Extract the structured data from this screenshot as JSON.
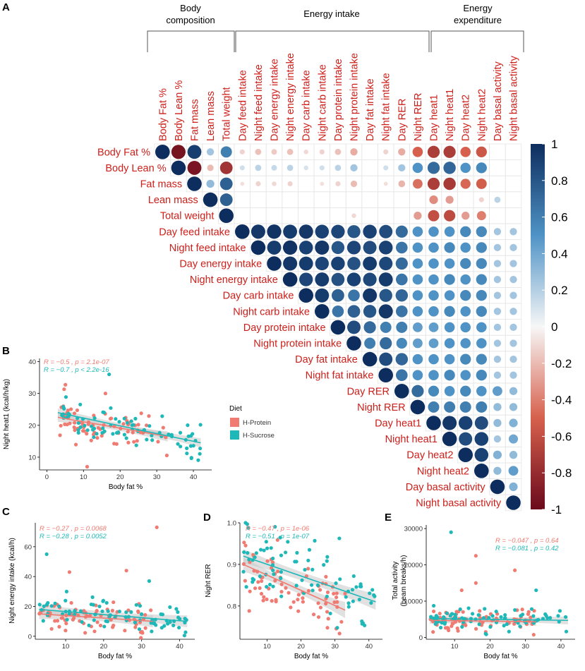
{
  "chart_data": [
    {
      "panel": "A",
      "type": "heatmap",
      "title": "",
      "groups": [
        "Body composition",
        "Energy intake",
        "Energy expenditure"
      ],
      "rows": [
        "Body Fat %",
        "Body Lean %",
        "Fat mass",
        "Lean mass",
        "Total weight",
        "Day feed intake",
        "Night feed intake",
        "Day energy intake",
        "Night energy intake",
        "Day carb intake",
        "Night carb intake",
        "Day protein intake",
        "Night protein intake",
        "Day fat intake",
        "Night fat intake",
        "Day RER",
        "Night RER",
        "Day heat1",
        "Night heat1",
        "Day heat2",
        "Night heat2",
        "Day basal activity",
        "Night basal activity"
      ],
      "columns": [
        "Body Fat %",
        "Body Lean %",
        "Fat mass",
        "Lean mass",
        "Total weight",
        "Day feed intake",
        "Night feed intake",
        "Day energy intake",
        "Night energy intake",
        "Day carb intake",
        "Night carb intake",
        "Day protein intake",
        "Night protein intake",
        "Day fat intake",
        "Night fat intake",
        "Day RER",
        "Night RER",
        "Day heat1",
        "Night heat1",
        "Day heat2",
        "Night heat2",
        "Day basal activity",
        "Night basal activity"
      ],
      "matrix": [
        [
          1,
          -0.95,
          0.92,
          0.25,
          0.6,
          -0.12,
          -0.18,
          -0.15,
          -0.18,
          -0.1,
          -0.12,
          -0.18,
          -0.25,
          null,
          -0.12,
          -0.25,
          -0.5,
          -0.7,
          -0.7,
          -0.5,
          -0.55,
          null,
          null
        ],
        [
          null,
          1,
          -0.93,
          -0.2,
          -0.75,
          0.12,
          0.18,
          0.15,
          0.18,
          0.1,
          0.12,
          0.18,
          0.25,
          null,
          0.12,
          0.25,
          0.5,
          0.7,
          0.72,
          0.5,
          0.55,
          null,
          null
        ],
        [
          null,
          null,
          1,
          0.3,
          0.75,
          -0.08,
          -0.12,
          -0.1,
          -0.12,
          null,
          -0.08,
          -0.12,
          -0.2,
          null,
          -0.08,
          -0.22,
          -0.45,
          -0.7,
          -0.72,
          -0.48,
          -0.52,
          null,
          null
        ],
        [
          null,
          null,
          null,
          1,
          0.75,
          null,
          null,
          null,
          null,
          null,
          null,
          null,
          null,
          null,
          null,
          null,
          null,
          -0.35,
          -0.3,
          null,
          -0.12,
          0.18,
          null
        ],
        [
          null,
          null,
          null,
          null,
          1,
          null,
          null,
          null,
          null,
          null,
          null,
          null,
          -0.1,
          null,
          null,
          null,
          -0.3,
          -0.6,
          -0.62,
          -0.3,
          -0.4,
          null,
          null
        ],
        [
          null,
          null,
          null,
          null,
          null,
          1,
          0.95,
          0.97,
          0.93,
          0.95,
          0.9,
          0.88,
          0.8,
          0.9,
          0.85,
          0.7,
          0.5,
          0.5,
          0.5,
          0.55,
          0.55,
          0.25,
          0.25
        ],
        [
          null,
          null,
          null,
          null,
          null,
          null,
          1,
          0.93,
          0.97,
          0.9,
          0.95,
          0.8,
          0.88,
          0.85,
          0.9,
          0.65,
          0.5,
          0.5,
          0.55,
          0.5,
          0.55,
          0.25,
          0.25
        ],
        [
          null,
          null,
          null,
          null,
          null,
          null,
          null,
          1,
          0.95,
          0.93,
          0.88,
          0.9,
          0.82,
          0.93,
          0.87,
          0.7,
          0.5,
          0.5,
          0.5,
          0.55,
          0.55,
          0.25,
          0.25
        ],
        [
          null,
          null,
          null,
          null,
          null,
          null,
          null,
          null,
          1,
          0.88,
          0.93,
          0.82,
          0.9,
          0.87,
          0.93,
          0.65,
          0.5,
          0.5,
          0.55,
          0.5,
          0.55,
          0.25,
          0.25
        ],
        [
          null,
          null,
          null,
          null,
          null,
          null,
          null,
          null,
          null,
          1,
          0.93,
          0.75,
          0.65,
          0.95,
          0.8,
          0.72,
          0.5,
          0.5,
          0.5,
          0.55,
          0.55,
          0.25,
          0.25
        ],
        [
          null,
          null,
          null,
          null,
          null,
          null,
          null,
          null,
          null,
          null,
          1,
          0.65,
          0.75,
          0.8,
          0.95,
          0.65,
          0.5,
          0.5,
          0.55,
          0.5,
          0.55,
          0.25,
          0.25
        ],
        [
          null,
          null,
          null,
          null,
          null,
          null,
          null,
          null,
          null,
          null,
          null,
          1,
          0.85,
          0.7,
          0.6,
          0.6,
          0.45,
          0.45,
          0.5,
          0.5,
          0.5,
          0.25,
          0.25
        ],
        [
          null,
          null,
          null,
          null,
          null,
          null,
          null,
          null,
          null,
          null,
          null,
          null,
          1,
          0.6,
          0.7,
          0.55,
          0.45,
          0.45,
          0.5,
          0.5,
          0.5,
          0.25,
          0.25
        ],
        [
          null,
          null,
          null,
          null,
          null,
          null,
          null,
          null,
          null,
          null,
          null,
          null,
          null,
          1,
          0.85,
          0.72,
          0.5,
          0.5,
          0.5,
          0.55,
          0.55,
          0.25,
          0.25
        ],
        [
          null,
          null,
          null,
          null,
          null,
          null,
          null,
          null,
          null,
          null,
          null,
          null,
          null,
          null,
          1,
          0.65,
          0.5,
          0.5,
          0.55,
          0.5,
          0.55,
          0.25,
          0.25
        ],
        [
          null,
          null,
          null,
          null,
          null,
          null,
          null,
          null,
          null,
          null,
          null,
          null,
          null,
          null,
          null,
          1,
          0.7,
          0.55,
          0.5,
          0.55,
          0.5,
          0.45,
          0.3
        ],
        [
          null,
          null,
          null,
          null,
          null,
          null,
          null,
          null,
          null,
          null,
          null,
          null,
          null,
          null,
          null,
          null,
          1,
          0.6,
          0.6,
          0.6,
          0.6,
          0.3,
          0.3
        ],
        [
          null,
          null,
          null,
          null,
          null,
          null,
          null,
          null,
          null,
          null,
          null,
          null,
          null,
          null,
          null,
          null,
          null,
          1,
          0.95,
          0.9,
          0.85,
          0.3,
          0.35
        ],
        [
          null,
          null,
          null,
          null,
          null,
          null,
          null,
          null,
          null,
          null,
          null,
          null,
          null,
          null,
          null,
          null,
          null,
          null,
          1,
          0.85,
          0.9,
          0.25,
          0.4
        ],
        [
          null,
          null,
          null,
          null,
          null,
          null,
          null,
          null,
          null,
          null,
          null,
          null,
          null,
          null,
          null,
          null,
          null,
          null,
          null,
          1,
          0.9,
          0.35,
          0.3
        ],
        [
          null,
          null,
          null,
          null,
          null,
          null,
          null,
          null,
          null,
          null,
          null,
          null,
          null,
          null,
          null,
          null,
          null,
          null,
          null,
          null,
          1,
          0.3,
          0.45
        ],
        [
          null,
          null,
          null,
          null,
          null,
          null,
          null,
          null,
          null,
          null,
          null,
          null,
          null,
          null,
          null,
          null,
          null,
          null,
          null,
          null,
          null,
          1,
          0.35
        ],
        [
          null,
          null,
          null,
          null,
          null,
          null,
          null,
          null,
          null,
          null,
          null,
          null,
          null,
          null,
          null,
          null,
          null,
          null,
          null,
          null,
          null,
          null,
          1
        ]
      ],
      "colorbar": {
        "range": [
          -1,
          1
        ],
        "ticks": [
          "1",
          "0.8",
          "0.6",
          "0.4",
          "0.2",
          "0",
          "-0.2",
          "-0.4",
          "-0.6",
          "-0.8",
          "-1"
        ],
        "tick_values": [
          1,
          0.8,
          0.6,
          0.4,
          0.2,
          0,
          -0.2,
          -0.4,
          -0.6,
          -0.8,
          -1
        ]
      },
      "colors": {
        "neg": "#6b0a1c",
        "neg_mid": "#d6604d",
        "zero": "#f7f7f7",
        "pos_mid": "#4f93c6",
        "pos": "#0d2d5e"
      }
    },
    {
      "panel": "B",
      "type": "scatter",
      "xlabel": "Body fat %",
      "ylabel": "Night heat1 (kcal/h/kg)",
      "xlim": [
        -2,
        45
      ],
      "ylim": [
        6,
        41
      ],
      "xticks": [
        0,
        10,
        20,
        30,
        40
      ],
      "yticks": [
        10,
        20,
        30,
        40
      ],
      "legend": {
        "title": "Diet",
        "items": [
          "H-Protein",
          "H-Sucrose"
        ]
      },
      "stats": [
        {
          "R": "R = −0.5 ,",
          "p": "p = 2.1e-07"
        },
        {
          "R": "R = −0.7 ,",
          "p": "p < 2.2e-16"
        }
      ],
      "fits": [
        {
          "x": [
            3,
            33
          ],
          "y": [
            22.5,
            16.5
          ]
        },
        {
          "x": [
            3,
            42
          ],
          "y": [
            24,
            14.5
          ]
        }
      ],
      "bands": [
        1.0,
        0.9
      ],
      "point_spec": {
        "n": 75,
        "x_range": [
          3,
          33
        ],
        "slope": -0.2,
        "intercept": 23.1,
        "sd": 3.0,
        "seed": 11,
        "outliers": [
          [
            11,
            7
          ],
          [
            16,
            30
          ]
        ]
      },
      "point_spec2": {
        "n": 80,
        "x_range": [
          3,
          42
        ],
        "slope": -0.25,
        "intercept": 25,
        "sd": 2.5,
        "seed": 23,
        "outliers": [
          [
            17,
            36
          ]
        ]
      }
    },
    {
      "panel": "C",
      "type": "scatter",
      "xlabel": "Body fat %",
      "ylabel": "Night energy intake (kcal/h)",
      "xlim": [
        2,
        44
      ],
      "ylim": [
        -2,
        76
      ],
      "xticks": [
        10,
        20,
        30,
        40
      ],
      "yticks": [
        0,
        20,
        40,
        60
      ],
      "stats": [
        {
          "R": "R = −0.27 ,",
          "p": "p = 0.0068"
        },
        {
          "R": "R = −0.28 ,",
          "p": "p = 0.0052"
        }
      ],
      "fits": [
        {
          "x": [
            3,
            33
          ],
          "y": [
            15,
            10
          ]
        },
        {
          "x": [
            3,
            42
          ],
          "y": [
            18,
            10
          ]
        }
      ],
      "bands": [
        2.5,
        2.5
      ],
      "point_spec": {
        "n": 75,
        "x_range": [
          3,
          33
        ],
        "slope": -0.17,
        "intercept": 15.5,
        "sd": 5,
        "seed": 5,
        "outliers": [
          [
            34,
            73
          ],
          [
            26,
            44
          ],
          [
            11,
            43
          ]
        ]
      },
      "point_spec2": {
        "n": 80,
        "x_range": [
          3,
          42
        ],
        "slope": -0.2,
        "intercept": 18.6,
        "sd": 5,
        "seed": 7,
        "outliers": [
          [
            5,
            55
          ],
          [
            32,
            37
          ]
        ]
      }
    },
    {
      "panel": "D",
      "type": "scatter",
      "xlabel": "Body fat %",
      "ylabel": "Night RER",
      "xlim": [
        2,
        44
      ],
      "ylim": [
        0.72,
        1.0
      ],
      "xticks": [
        10,
        20,
        30,
        40
      ],
      "yticks": [
        0.8,
        0.9,
        1.0
      ],
      "ytick_labels": [
        "0.8",
        "0.9",
        "1.0"
      ],
      "stats": [
        {
          "R": "R = −0.47 ,",
          "p": "p = 1e-06"
        },
        {
          "R": "R = −0.51 ,",
          "p": "p = 1e-07"
        }
      ],
      "fits": [
        {
          "x": [
            3,
            33
          ],
          "y": [
            0.9,
            0.79
          ]
        },
        {
          "x": [
            3,
            42
          ],
          "y": [
            0.92,
            0.81
          ]
        }
      ],
      "bands": [
        0.012,
        0.012
      ],
      "point_spec": {
        "n": 75,
        "x_range": [
          3,
          33
        ],
        "slope": -0.0037,
        "intercept": 0.911,
        "sd": 0.045,
        "seed": 3,
        "outliers": []
      },
      "point_spec2": {
        "n": 80,
        "x_range": [
          3,
          42
        ],
        "slope": -0.0028,
        "intercept": 0.928,
        "sd": 0.045,
        "seed": 9,
        "outliers": []
      }
    },
    {
      "panel": "E",
      "type": "scatter",
      "xlabel": "Body fat %",
      "ylabel": "Total activity (beam breaks/h)",
      "ylabel_lines": [
        "Total activity",
        "(beam breaks/h)"
      ],
      "xlim": [
        2,
        44
      ],
      "ylim": [
        -500,
        31000
      ],
      "xticks": [
        10,
        20,
        30,
        40
      ],
      "yticks": [
        0,
        10000,
        20000,
        30000
      ],
      "stats": [
        {
          "R": "R = −0.047 ,",
          "p": "p = 0.64"
        },
        {
          "R": "R = −0.081 ,",
          "p": "p = 0.42"
        }
      ],
      "fits": [
        {
          "x": [
            3,
            33
          ],
          "y": [
            4700,
            4300
          ]
        },
        {
          "x": [
            3,
            42
          ],
          "y": [
            5200,
            4700
          ]
        }
      ],
      "bands": [
        700,
        700
      ],
      "point_spec": {
        "n": 75,
        "x_range": [
          3,
          33
        ],
        "slope": -13,
        "intercept": 4750,
        "sd": 1500,
        "seed": 13,
        "outliers": [
          [
            16,
            22500
          ],
          [
            27,
            18500
          ],
          [
            12,
            13000
          ],
          [
            16,
            15000
          ]
        ]
      },
      "point_spec2": {
        "n": 80,
        "x_range": [
          3,
          42
        ],
        "slope": -13,
        "intercept": 5240,
        "sd": 1500,
        "seed": 17,
        "outliers": [
          [
            9,
            29000
          ],
          [
            33,
            13000
          ]
        ]
      }
    }
  ],
  "colors": {
    "protein": "#f07b72",
    "sucrose": "#1fb8b8",
    "band": "#c9c9c9"
  }
}
